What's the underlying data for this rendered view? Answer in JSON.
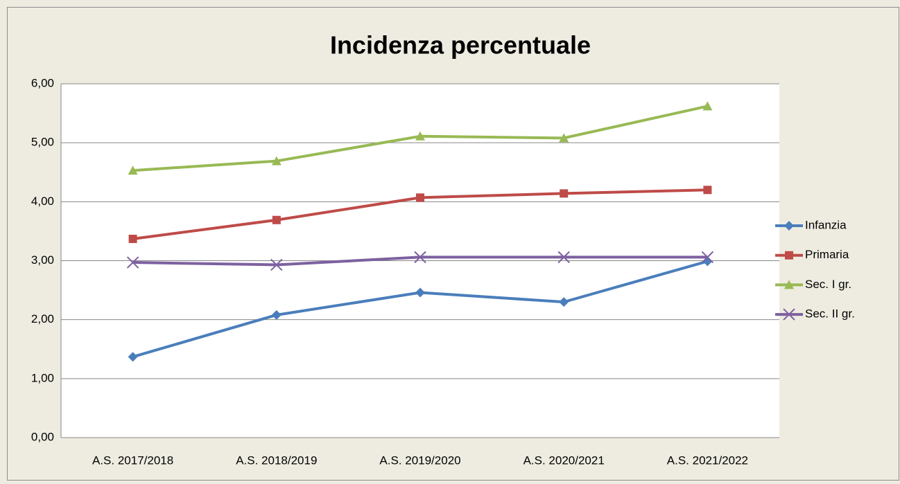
{
  "chart_data": {
    "type": "line",
    "title": "Incidenza percentuale",
    "categories": [
      "A.S. 2017/2018",
      "A.S. 2018/2019",
      "A.S. 2019/2020",
      "A.S. 2020/2021",
      "A.S. 2021/2022"
    ],
    "series": [
      {
        "name": "Infanzia",
        "color": "#4a7ebb",
        "marker": "diamond",
        "values": [
          1.37,
          2.08,
          2.46,
          2.3,
          2.99
        ]
      },
      {
        "name": "Primaria",
        "color": "#be4b48",
        "marker": "square",
        "values": [
          3.37,
          3.69,
          4.07,
          4.14,
          4.2
        ]
      },
      {
        "name": "Sec. I gr.",
        "color": "#98b954",
        "marker": "triangle",
        "values": [
          4.53,
          4.69,
          5.11,
          5.08,
          5.62
        ]
      },
      {
        "name": "Sec. II gr.",
        "color": "#7d60a0",
        "marker": "x",
        "values": [
          2.97,
          2.93,
          3.06,
          3.06,
          3.06
        ]
      }
    ],
    "ylim": [
      0,
      6
    ],
    "yticks": [
      {
        "value": 0,
        "label": "0,00"
      },
      {
        "value": 1,
        "label": "1,00"
      },
      {
        "value": 2,
        "label": "2,00"
      },
      {
        "value": 3,
        "label": "3,00"
      },
      {
        "value": 4,
        "label": "4,00"
      },
      {
        "value": 5,
        "label": "5,00"
      },
      {
        "value": 6,
        "label": "6,00"
      }
    ],
    "grid": true,
    "legend": "right"
  }
}
